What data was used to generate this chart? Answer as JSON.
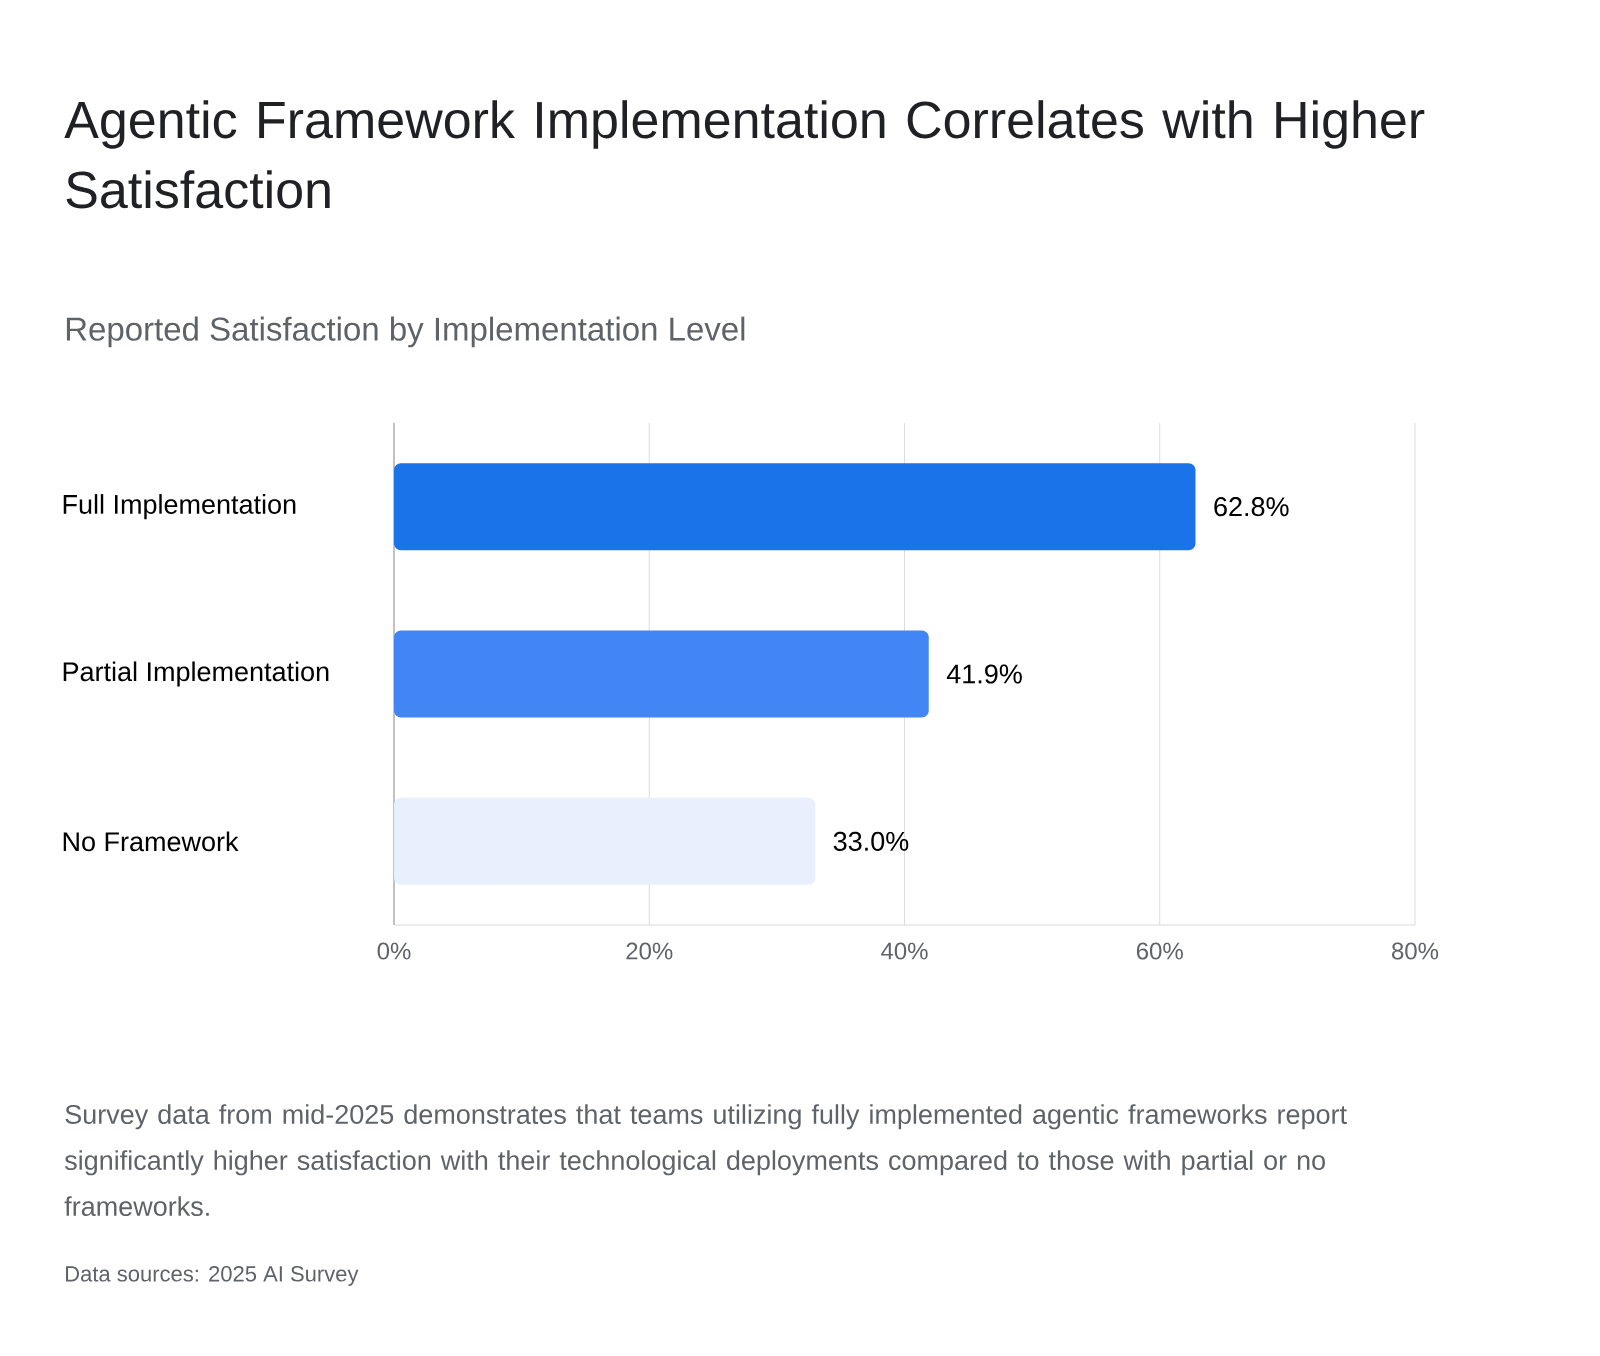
{
  "chart_data": {
    "type": "bar",
    "orientation": "horizontal",
    "title": "Agentic Framework Implementation Correlates with Higher Satisfaction",
    "subtitle": "Reported Satisfaction by Implementation Level",
    "categories": [
      "Full Implementation",
      "Partial Implementation",
      "No Framework"
    ],
    "values": [
      62.8,
      41.9,
      33.0
    ],
    "colors": [
      "#1a73e8",
      "#4285f4",
      "#e8f0fe"
    ],
    "value_labels": [
      "62.8%",
      "41.9%",
      "33.0%"
    ],
    "xlim": [
      0,
      80
    ],
    "xticks": [
      {
        "value": 0,
        "label": "0%"
      },
      {
        "value": 20,
        "label": "20%"
      },
      {
        "value": 40,
        "label": "40%"
      },
      {
        "value": 60,
        "label": "60%"
      },
      {
        "value": 80,
        "label": "80%"
      }
    ],
    "grid": "x",
    "annotations": [
      "Survey data from mid-2025 demonstrates that teams utilizing fully implemented agentic frameworks report significantly higher satisfaction with their technological deployments compared to those with partial or no frameworks.",
      "Data sources: 2025 AI Survey"
    ]
  }
}
